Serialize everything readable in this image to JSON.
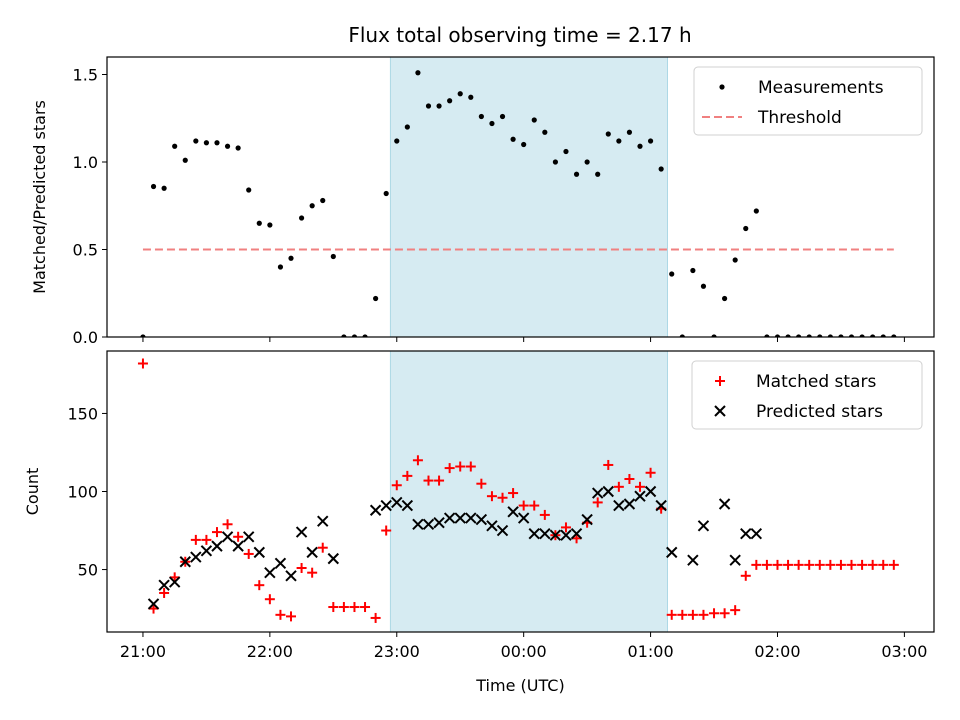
{
  "title": "Flux total observing time = 2.17 h",
  "colors": {
    "marker_black": "#000000",
    "matched": "#ff0000",
    "threshold": "#f08080",
    "shade": "#add8e6"
  },
  "chart_data": [
    {
      "type": "scatter",
      "ylabel": "Matched/Predicted stars",
      "xlim": [
        "20:43",
        "03:14"
      ],
      "ylim": [
        0,
        1.6
      ],
      "yticks": [
        "0.0",
        "0.5",
        "1.0",
        "1.5"
      ],
      "shaded_span": [
        "22:57",
        "01:08"
      ],
      "legend": {
        "position": "upper right",
        "entries": [
          "Measurements",
          "Threshold"
        ]
      },
      "threshold": {
        "name": "Threshold",
        "value": 0.5,
        "x": [
          "21:00",
          "02:55"
        ],
        "style": "dashed"
      },
      "series": [
        {
          "name": "Measurements",
          "marker": "dot",
          "points": [
            [
              "21:00",
              0.0
            ],
            [
              "21:05",
              0.86
            ],
            [
              "21:10",
              0.85
            ],
            [
              "21:15",
              1.09
            ],
            [
              "21:20",
              1.01
            ],
            [
              "21:25",
              1.12
            ],
            [
              "21:30",
              1.11
            ],
            [
              "21:35",
              1.11
            ],
            [
              "21:40",
              1.09
            ],
            [
              "21:45",
              1.08
            ],
            [
              "21:50",
              0.84
            ],
            [
              "21:55",
              0.65
            ],
            [
              "22:00",
              0.64
            ],
            [
              "22:05",
              0.4
            ],
            [
              "22:10",
              0.45
            ],
            [
              "22:15",
              0.68
            ],
            [
              "22:20",
              0.75
            ],
            [
              "22:25",
              0.78
            ],
            [
              "22:30",
              0.46
            ],
            [
              "22:35",
              0.0
            ],
            [
              "22:40",
              0.0
            ],
            [
              "22:45",
              0.0
            ],
            [
              "22:50",
              0.22
            ],
            [
              "22:55",
              0.82
            ],
            [
              "23:00",
              1.12
            ],
            [
              "23:05",
              1.2
            ],
            [
              "23:10",
              1.51
            ],
            [
              "23:15",
              1.32
            ],
            [
              "23:20",
              1.32
            ],
            [
              "23:25",
              1.35
            ],
            [
              "23:30",
              1.39
            ],
            [
              "23:35",
              1.37
            ],
            [
              "23:40",
              1.26
            ],
            [
              "23:45",
              1.22
            ],
            [
              "23:50",
              1.26
            ],
            [
              "23:55",
              1.13
            ],
            [
              "00:00",
              1.1
            ],
            [
              "00:05",
              1.24
            ],
            [
              "00:10",
              1.17
            ],
            [
              "00:15",
              1.0
            ],
            [
              "00:20",
              1.06
            ],
            [
              "00:25",
              0.93
            ],
            [
              "00:30",
              1.0
            ],
            [
              "00:35",
              0.93
            ],
            [
              "00:40",
              1.16
            ],
            [
              "00:45",
              1.12
            ],
            [
              "00:50",
              1.17
            ],
            [
              "00:55",
              1.09
            ],
            [
              "01:00",
              1.12
            ],
            [
              "01:05",
              0.96
            ],
            [
              "01:10",
              0.36
            ],
            [
              "01:15",
              0.0
            ],
            [
              "01:20",
              0.38
            ],
            [
              "01:25",
              0.29
            ],
            [
              "01:30",
              0.0
            ],
            [
              "01:35",
              0.22
            ],
            [
              "01:40",
              0.44
            ],
            [
              "01:45",
              0.62
            ],
            [
              "01:50",
              0.72
            ],
            [
              "01:55",
              0.0
            ],
            [
              "02:00",
              0.0
            ],
            [
              "02:05",
              0.0
            ],
            [
              "02:10",
              0.0
            ],
            [
              "02:15",
              0.0
            ],
            [
              "02:20",
              0.0
            ],
            [
              "02:25",
              0.0
            ],
            [
              "02:30",
              0.0
            ],
            [
              "02:35",
              0.0
            ],
            [
              "02:40",
              0.0
            ],
            [
              "02:45",
              0.0
            ],
            [
              "02:50",
              0.0
            ],
            [
              "02:55",
              0.0
            ]
          ]
        }
      ]
    },
    {
      "type": "scatter",
      "xlabel": "Time (UTC)",
      "ylabel": "Count",
      "xlim": [
        "20:43",
        "03:14"
      ],
      "ylim": [
        10,
        190
      ],
      "yticks": [
        "50",
        "100",
        "150"
      ],
      "xticks": [
        "21:00",
        "22:00",
        "23:00",
        "00:00",
        "01:00",
        "02:00",
        "03:00"
      ],
      "shaded_span": [
        "22:57",
        "01:08"
      ],
      "legend": {
        "position": "upper right",
        "entries": [
          "Matched stars",
          "Predicted stars"
        ]
      },
      "series": [
        {
          "name": "Matched stars",
          "marker": "plus",
          "points": [
            [
              "21:00",
              182
            ],
            [
              "21:05",
              25
            ],
            [
              "21:10",
              35
            ],
            [
              "21:15",
              45
            ],
            [
              "21:20",
              55
            ],
            [
              "21:25",
              69
            ],
            [
              "21:30",
              69
            ],
            [
              "21:35",
              74
            ],
            [
              "21:40",
              79
            ],
            [
              "21:45",
              71
            ],
            [
              "21:50",
              60
            ],
            [
              "21:55",
              40
            ],
            [
              "22:00",
              31
            ],
            [
              "22:05",
              21
            ],
            [
              "22:10",
              20
            ],
            [
              "22:15",
              51
            ],
            [
              "22:20",
              48
            ],
            [
              "22:25",
              64
            ],
            [
              "22:30",
              26
            ],
            [
              "22:35",
              26
            ],
            [
              "22:40",
              26
            ],
            [
              "22:45",
              26
            ],
            [
              "22:50",
              19
            ],
            [
              "22:55",
              75
            ],
            [
              "23:00",
              104
            ],
            [
              "23:05",
              110
            ],
            [
              "23:10",
              120
            ],
            [
              "23:15",
              107
            ],
            [
              "23:20",
              107
            ],
            [
              "23:25",
              115
            ],
            [
              "23:30",
              116
            ],
            [
              "23:35",
              116
            ],
            [
              "23:40",
              105
            ],
            [
              "23:45",
              97
            ],
            [
              "23:50",
              96
            ],
            [
              "23:55",
              99
            ],
            [
              "00:00",
              91
            ],
            [
              "00:05",
              91
            ],
            [
              "00:10",
              85
            ],
            [
              "00:15",
              72
            ],
            [
              "00:20",
              77
            ],
            [
              "00:25",
              70
            ],
            [
              "00:30",
              80
            ],
            [
              "00:35",
              93
            ],
            [
              "00:40",
              117
            ],
            [
              "00:45",
              103
            ],
            [
              "00:50",
              108
            ],
            [
              "00:55",
              103
            ],
            [
              "01:00",
              112
            ],
            [
              "01:05",
              89
            ],
            [
              "01:10",
              21
            ],
            [
              "01:15",
              21
            ],
            [
              "01:20",
              21
            ],
            [
              "01:25",
              21
            ],
            [
              "01:30",
              22
            ],
            [
              "01:35",
              22
            ],
            [
              "01:40",
              24
            ],
            [
              "01:45",
              46
            ],
            [
              "01:50",
              53
            ],
            [
              "01:55",
              53
            ],
            [
              "02:00",
              53
            ],
            [
              "02:05",
              53
            ],
            [
              "02:10",
              53
            ],
            [
              "02:15",
              53
            ],
            [
              "02:20",
              53
            ],
            [
              "02:25",
              53
            ],
            [
              "02:30",
              53
            ],
            [
              "02:35",
              53
            ],
            [
              "02:40",
              53
            ],
            [
              "02:45",
              53
            ],
            [
              "02:50",
              53
            ],
            [
              "02:55",
              53
            ]
          ]
        },
        {
          "name": "Predicted stars",
          "marker": "x",
          "points": [
            [
              "21:05",
              28
            ],
            [
              "21:10",
              40
            ],
            [
              "21:15",
              42
            ],
            [
              "21:20",
              55
            ],
            [
              "21:25",
              58
            ],
            [
              "21:30",
              62
            ],
            [
              "21:35",
              65
            ],
            [
              "21:40",
              71
            ],
            [
              "21:45",
              65
            ],
            [
              "21:50",
              71
            ],
            [
              "21:55",
              61
            ],
            [
              "22:00",
              48
            ],
            [
              "22:05",
              54
            ],
            [
              "22:10",
              46
            ],
            [
              "22:15",
              74
            ],
            [
              "22:20",
              61
            ],
            [
              "22:25",
              81
            ],
            [
              "22:30",
              57
            ],
            [
              "22:50",
              88
            ],
            [
              "22:55",
              91
            ],
            [
              "23:00",
              93
            ],
            [
              "23:05",
              91
            ],
            [
              "23:10",
              79
            ],
            [
              "23:15",
              79
            ],
            [
              "23:20",
              80
            ],
            [
              "23:25",
              83
            ],
            [
              "23:30",
              83
            ],
            [
              "23:35",
              83
            ],
            [
              "23:40",
              82
            ],
            [
              "23:45",
              78
            ],
            [
              "23:50",
              75
            ],
            [
              "23:55",
              87
            ],
            [
              "00:00",
              83
            ],
            [
              "00:05",
              73
            ],
            [
              "00:10",
              73
            ],
            [
              "00:15",
              72
            ],
            [
              "00:20",
              72
            ],
            [
              "00:25",
              73
            ],
            [
              "00:30",
              82
            ],
            [
              "00:35",
              99
            ],
            [
              "00:40",
              100
            ],
            [
              "00:45",
              91
            ],
            [
              "00:50",
              92
            ],
            [
              "00:55",
              97
            ],
            [
              "01:00",
              100
            ],
            [
              "01:05",
              91
            ],
            [
              "01:10",
              61
            ],
            [
              "01:20",
              56
            ],
            [
              "01:25",
              78
            ],
            [
              "01:35",
              92
            ],
            [
              "01:40",
              56
            ],
            [
              "01:45",
              73
            ],
            [
              "01:50",
              73
            ]
          ]
        }
      ]
    }
  ]
}
